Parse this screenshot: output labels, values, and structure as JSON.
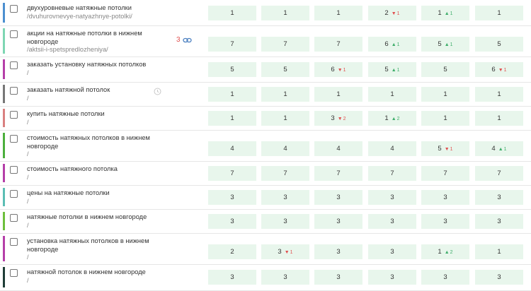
{
  "rows": [
    {
      "color": "#4c8fd0",
      "keyword": "двухуровневые натяжные потолки",
      "url": "/dvuhurovnevye-natyazhnye-potolki/",
      "count": null,
      "icon": null,
      "positions": [
        {
          "v": "1"
        },
        {
          "v": "1"
        },
        {
          "v": "1"
        },
        {
          "v": "2",
          "d": "1",
          "dir": "down"
        },
        {
          "v": "1",
          "d": "1",
          "dir": "up"
        },
        {
          "v": "1"
        }
      ]
    },
    {
      "color": "#7ed6b3",
      "keyword": "акции на натяжные потолки в нижнем новгороде",
      "url": "/aktsii-i-spetspredlozheniya/",
      "count": "3",
      "icon": "link-icon",
      "positions": [
        {
          "v": "7"
        },
        {
          "v": "7"
        },
        {
          "v": "7"
        },
        {
          "v": "6",
          "d": "1",
          "dir": "up"
        },
        {
          "v": "5",
          "d": "1",
          "dir": "up"
        },
        {
          "v": "5"
        }
      ]
    },
    {
      "color": "#b53fa8",
      "keyword": "заказать установку натяжных потолков",
      "url": "/",
      "count": null,
      "icon": null,
      "positions": [
        {
          "v": "5"
        },
        {
          "v": "5"
        },
        {
          "v": "6",
          "d": "1",
          "dir": "down"
        },
        {
          "v": "5",
          "d": "1",
          "dir": "up"
        },
        {
          "v": "5"
        },
        {
          "v": "6",
          "d": "1",
          "dir": "down"
        }
      ]
    },
    {
      "color": "#777777",
      "keyword": "заказать натяжной потолок",
      "url": "/",
      "count": null,
      "icon": "clock-icon",
      "positions": [
        {
          "v": "1"
        },
        {
          "v": "1"
        },
        {
          "v": "1"
        },
        {
          "v": "1"
        },
        {
          "v": "1"
        },
        {
          "v": "1"
        }
      ]
    },
    {
      "color": "#d98080",
      "keyword": "купить натяжные потолки",
      "url": "/",
      "count": null,
      "icon": null,
      "positions": [
        {
          "v": "1"
        },
        {
          "v": "1"
        },
        {
          "v": "3",
          "d": "2",
          "dir": "down"
        },
        {
          "v": "1",
          "d": "2",
          "dir": "up"
        },
        {
          "v": "1"
        },
        {
          "v": "1"
        }
      ]
    },
    {
      "color": "#4caf3c",
      "keyword": "стоимость натяжных потолков в нижнем новгороде",
      "url": "/",
      "count": null,
      "icon": null,
      "positions": [
        {
          "v": "4"
        },
        {
          "v": "4"
        },
        {
          "v": "4"
        },
        {
          "v": "4"
        },
        {
          "v": "5",
          "d": "1",
          "dir": "down"
        },
        {
          "v": "4",
          "d": "1",
          "dir": "up"
        }
      ]
    },
    {
      "color": "#b53fa8",
      "keyword": "стоимость натяжного потолка",
      "url": "/",
      "count": null,
      "icon": null,
      "positions": [
        {
          "v": "7"
        },
        {
          "v": "7"
        },
        {
          "v": "7"
        },
        {
          "v": "7"
        },
        {
          "v": "7"
        },
        {
          "v": "7"
        }
      ]
    },
    {
      "color": "#5bbdb4",
      "keyword": "цены на натяжные потолки",
      "url": "/",
      "count": null,
      "icon": null,
      "positions": [
        {
          "v": "3"
        },
        {
          "v": "3"
        },
        {
          "v": "3"
        },
        {
          "v": "3"
        },
        {
          "v": "3"
        },
        {
          "v": "3"
        }
      ]
    },
    {
      "color": "#6dbf3c",
      "keyword": "натяжные потолки в нижнем новгороде",
      "url": "/",
      "count": null,
      "icon": null,
      "positions": [
        {
          "v": "3"
        },
        {
          "v": "3"
        },
        {
          "v": "3"
        },
        {
          "v": "3"
        },
        {
          "v": "3"
        },
        {
          "v": "3"
        }
      ]
    },
    {
      "color": "#b53fa8",
      "keyword": "установка натяжных потолков в нижнем новгороде",
      "url": "/",
      "count": null,
      "icon": null,
      "positions": [
        {
          "v": "2"
        },
        {
          "v": "3",
          "d": "1",
          "dir": "down"
        },
        {
          "v": "3"
        },
        {
          "v": "3"
        },
        {
          "v": "1",
          "d": "2",
          "dir": "up"
        },
        {
          "v": "1"
        }
      ]
    },
    {
      "color": "#1f3d36",
      "keyword": "натяжной потолок в нижнем новгороде",
      "url": "/",
      "count": null,
      "icon": null,
      "positions": [
        {
          "v": "3"
        },
        {
          "v": "3"
        },
        {
          "v": "3"
        },
        {
          "v": "3"
        },
        {
          "v": "3"
        },
        {
          "v": "3"
        }
      ]
    }
  ]
}
